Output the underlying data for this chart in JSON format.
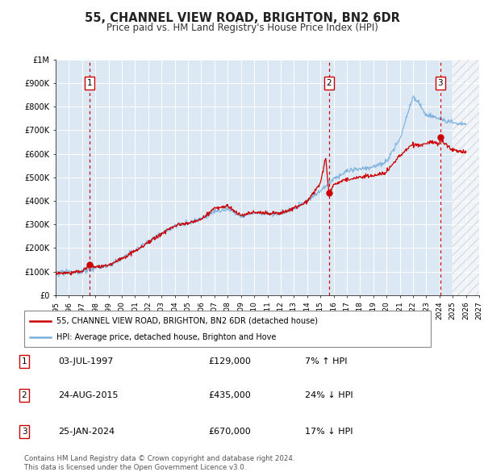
{
  "title": "55, CHANNEL VIEW ROAD, BRIGHTON, BN2 6DR",
  "subtitle": "Price paid vs. HM Land Registry's House Price Index (HPI)",
  "x_start": 1995,
  "x_end": 2027,
  "y_min": 0,
  "y_max": 1000000,
  "yticks": [
    0,
    100000,
    200000,
    300000,
    400000,
    500000,
    600000,
    700000,
    800000,
    900000,
    1000000
  ],
  "ytick_labels": [
    "£0",
    "£100K",
    "£200K",
    "£300K",
    "£400K",
    "£500K",
    "£600K",
    "£700K",
    "£800K",
    "£900K",
    "£1M"
  ],
  "xticks": [
    1995,
    1996,
    1997,
    1998,
    1999,
    2000,
    2001,
    2002,
    2003,
    2004,
    2005,
    2006,
    2007,
    2008,
    2009,
    2010,
    2011,
    2012,
    2013,
    2014,
    2015,
    2016,
    2017,
    2018,
    2019,
    2020,
    2021,
    2022,
    2023,
    2024,
    2025,
    2026,
    2027
  ],
  "hpi_color": "#7ab0dc",
  "price_color": "#cc0000",
  "vline_color": "#cc0000",
  "fig_bg": "#ffffff",
  "plot_bg": "#dde8f5",
  "grid_color": "#ffffff",
  "sale_points": [
    {
      "year": 1997.55,
      "price": 129000,
      "label": "1"
    },
    {
      "year": 2015.65,
      "price": 435000,
      "label": "2"
    },
    {
      "year": 2024.07,
      "price": 670000,
      "label": "3"
    }
  ],
  "sale_vlines": [
    1997.55,
    2015.65,
    2024.07
  ],
  "legend_entries": [
    "55, CHANNEL VIEW ROAD, BRIGHTON, BN2 6DR (detached house)",
    "HPI: Average price, detached house, Brighton and Hove"
  ],
  "table_rows": [
    {
      "num": "1",
      "date": "03-JUL-1997",
      "price": "£129,000",
      "hpi": "7% ↑ HPI"
    },
    {
      "num": "2",
      "date": "24-AUG-2015",
      "price": "£435,000",
      "hpi": "24% ↓ HPI"
    },
    {
      "num": "3",
      "date": "25-JAN-2024",
      "price": "£670,000",
      "hpi": "17% ↓ HPI"
    }
  ],
  "footer_line1": "Contains HM Land Registry data © Crown copyright and database right 2024.",
  "footer_line2": "This data is licensed under the Open Government Licence v3.0."
}
